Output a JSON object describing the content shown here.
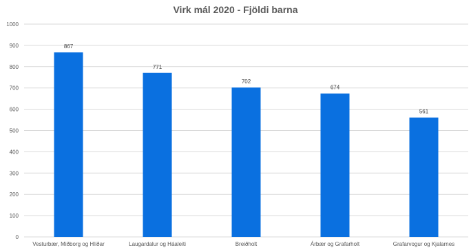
{
  "chart_data": {
    "type": "bar",
    "title": "Virk mál 2020 - Fjöldi barna",
    "xlabel": "",
    "ylabel": "",
    "categories": [
      "Vesturbær, Miðborg og Hlíðar",
      "Laugardalur og Háaleiti",
      "Breiðholt",
      "Árbær og Grafarholt",
      "Grafarvogur og Kjalarnes"
    ],
    "values": [
      867,
      771,
      702,
      674,
      561
    ],
    "ylim": [
      0,
      1000
    ],
    "yticks": [
      0,
      100,
      200,
      300,
      400,
      500,
      600,
      700,
      800,
      900,
      1000
    ],
    "grid": true,
    "legend": "none",
    "bar_color": "#0A70E0",
    "grid_color": "#D9D9D9",
    "text_color": "#595959"
  }
}
